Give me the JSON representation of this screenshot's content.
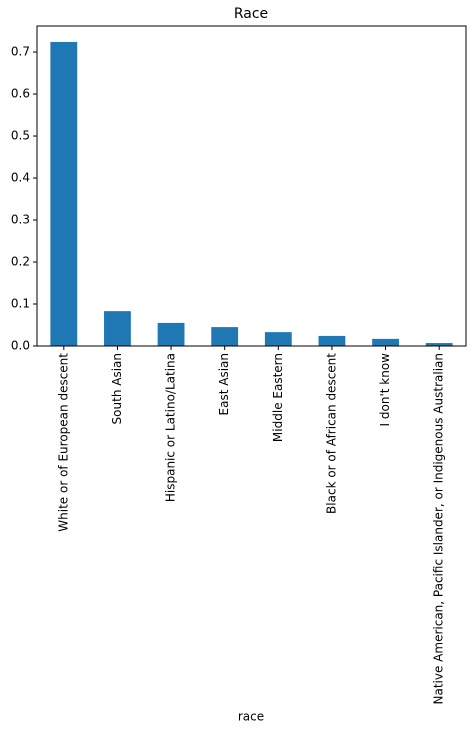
{
  "chart_data": {
    "type": "bar",
    "title": "Race",
    "x_label": "race",
    "categories": [
      "White or of European descent",
      "South Asian",
      "Hispanic or Latino/Latina",
      "East Asian",
      "Middle Eastern",
      "Black or of African descent",
      "I don't know",
      "Native American, Pacific Islander, or Indigenous Australian"
    ],
    "values": [
      0.724,
      0.083,
      0.055,
      0.045,
      0.033,
      0.024,
      0.017,
      0.007
    ],
    "color": "#1f77b4",
    "ylim": [
      0,
      0.762
    ],
    "yticks": [
      {
        "value": 0,
        "label": "0.0"
      },
      0.1,
      0.2,
      0.3,
      0.4,
      0.5,
      0.6,
      0.7
    ],
    "grid": false
  }
}
